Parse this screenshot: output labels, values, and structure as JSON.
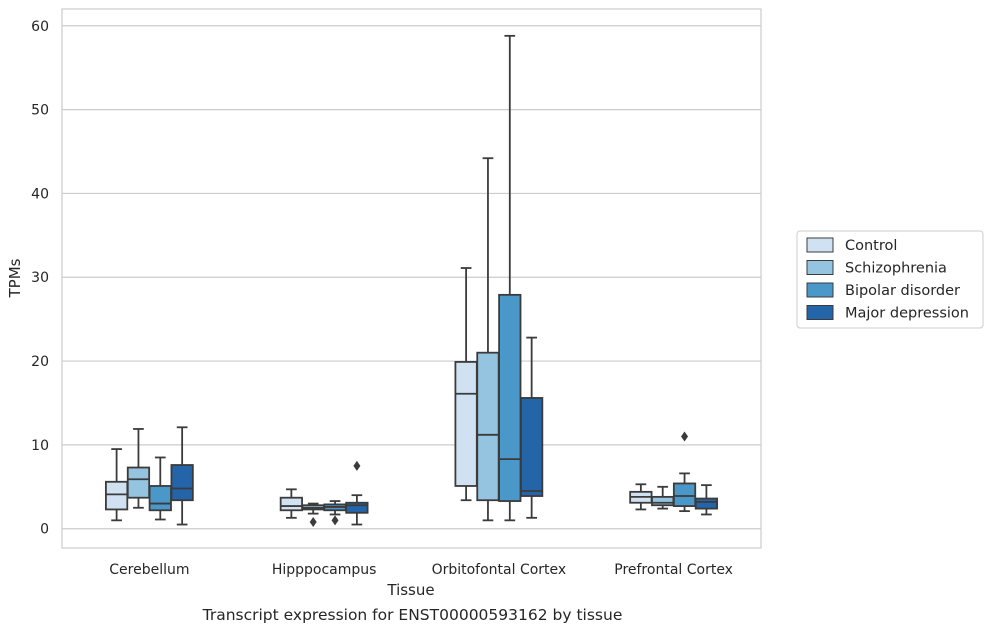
{
  "caption": "Transcript expression for ENST00000593162 by tissue",
  "chart_data": {
    "type": "box",
    "xlabel": "Tissue",
    "ylabel": "TPMs",
    "ylim": [
      -2.3,
      62
    ],
    "yticks": [
      0,
      10,
      20,
      30,
      40,
      50,
      60
    ],
    "grid": "horizontal",
    "legend_position": "right",
    "categories": [
      "Cerebellum",
      "Hipppocampus",
      "Orbitofontal Cortex",
      "Prefrontal Cortex"
    ],
    "series": [
      {
        "name": "Control",
        "color": "#d0e1f2",
        "boxes": [
          {
            "whislo": 1.0,
            "q1": 2.3,
            "med": 4.1,
            "q3": 5.6,
            "whishi": 9.5,
            "fliers": []
          },
          {
            "whislo": 1.3,
            "q1": 2.2,
            "med": 2.7,
            "q3": 3.7,
            "whishi": 4.7,
            "fliers": []
          },
          {
            "whislo": 3.4,
            "q1": 5.1,
            "med": 16.1,
            "q3": 19.9,
            "whishi": 31.1,
            "fliers": []
          },
          {
            "whislo": 2.3,
            "q1": 3.1,
            "med": 3.8,
            "q3": 4.4,
            "whishi": 5.3,
            "fliers": []
          }
        ]
      },
      {
        "name": "Schizophrenia",
        "color": "#94c4df",
        "boxes": [
          {
            "whislo": 2.5,
            "q1": 3.7,
            "med": 5.9,
            "q3": 7.3,
            "whishi": 11.9,
            "fliers": []
          },
          {
            "whislo": 1.8,
            "q1": 2.3,
            "med": 2.5,
            "q3": 2.8,
            "whishi": 3.0,
            "fliers": [
              0.8
            ]
          },
          {
            "whislo": 1.0,
            "q1": 3.4,
            "med": 11.2,
            "q3": 21.0,
            "whishi": 44.2,
            "fliers": []
          },
          {
            "whislo": 2.4,
            "q1": 2.8,
            "med": 3.1,
            "q3": 3.8,
            "whishi": 5.0,
            "fliers": []
          }
        ]
      },
      {
        "name": "Bipolar disorder",
        "color": "#4a98c9",
        "boxes": [
          {
            "whislo": 1.1,
            "q1": 2.2,
            "med": 3.0,
            "q3": 5.1,
            "whishi": 8.5,
            "fliers": []
          },
          {
            "whislo": 1.7,
            "q1": 2.2,
            "med": 2.6,
            "q3": 2.9,
            "whishi": 3.3,
            "fliers": [
              1.0
            ]
          },
          {
            "whislo": 1.0,
            "q1": 3.3,
            "med": 8.3,
            "q3": 27.9,
            "whishi": 58.8,
            "fliers": []
          },
          {
            "whislo": 2.1,
            "q1": 2.7,
            "med": 3.9,
            "q3": 5.4,
            "whishi": 6.6,
            "fliers": [
              11.0
            ]
          }
        ]
      },
      {
        "name": "Major depression",
        "color": "#2464a8",
        "boxes": [
          {
            "whislo": 0.5,
            "q1": 3.4,
            "med": 4.8,
            "q3": 7.6,
            "whishi": 12.1,
            "fliers": []
          },
          {
            "whislo": 0.5,
            "q1": 1.9,
            "med": 2.8,
            "q3": 3.1,
            "whishi": 4.0,
            "fliers": [
              7.5
            ]
          },
          {
            "whislo": 1.3,
            "q1": 3.9,
            "med": 4.5,
            "q3": 15.6,
            "whishi": 22.8,
            "fliers": []
          },
          {
            "whislo": 1.7,
            "q1": 2.4,
            "med": 3.2,
            "q3": 3.6,
            "whishi": 5.2,
            "fliers": []
          }
        ]
      }
    ]
  }
}
